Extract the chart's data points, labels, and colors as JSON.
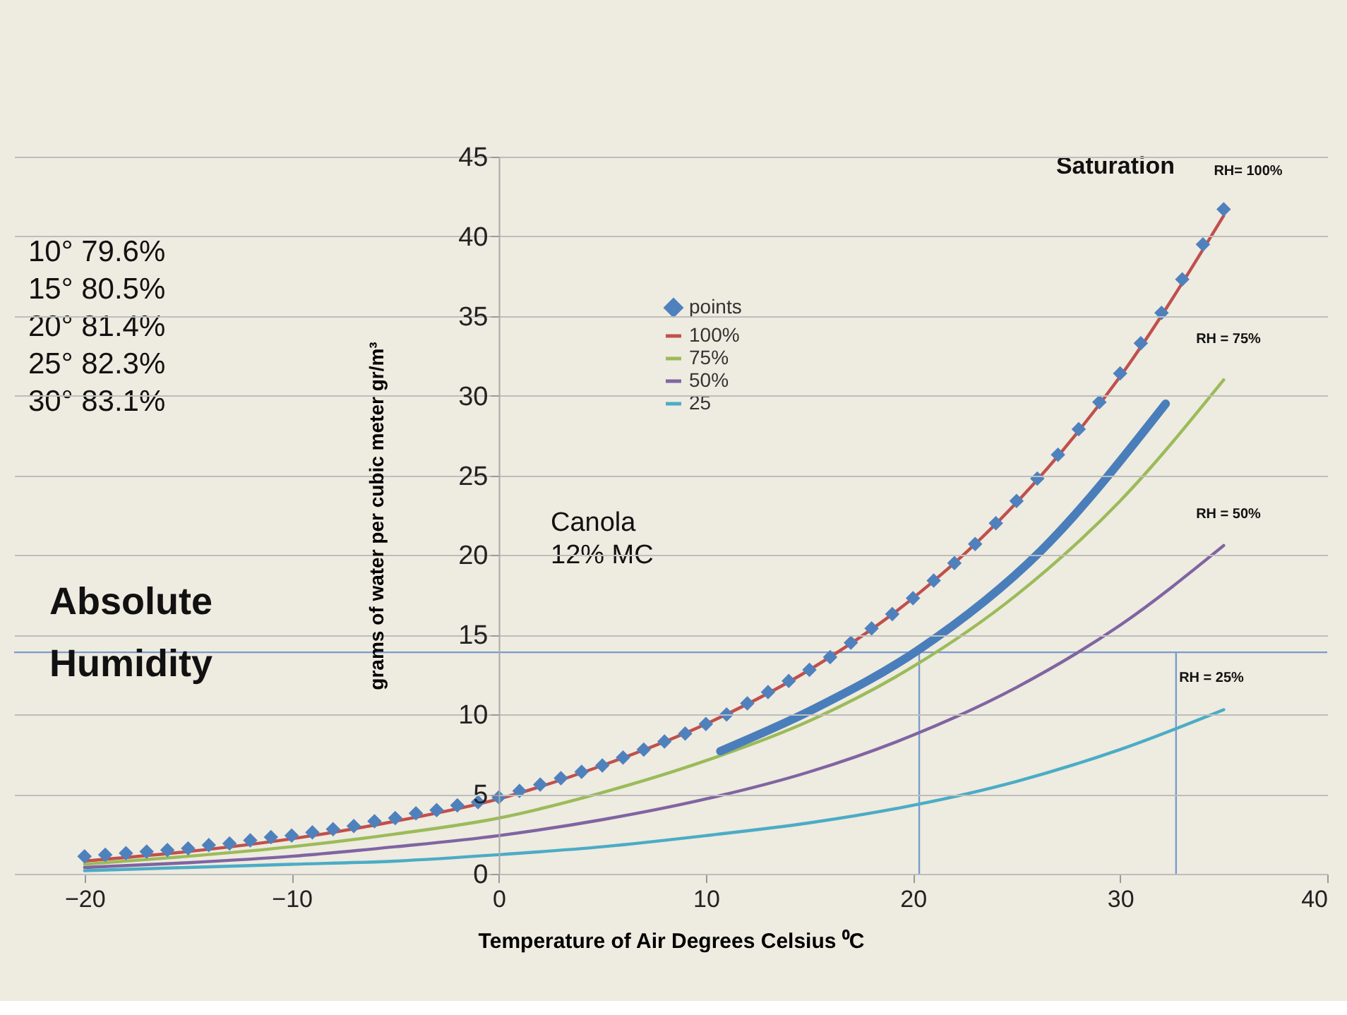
{
  "chart_data": {
    "type": "line",
    "title": "Absolute Humidity",
    "xlabel": "Temperature of Air   Degrees Celsius  ⁰C",
    "ylabel": "grams of water per cubic meter  gr/m³",
    "xlim": [
      -23.4,
      40
    ],
    "xticks": [
      -20,
      -10,
      0,
      10,
      20,
      30,
      40
    ],
    "ylim": [
      0,
      45
    ],
    "yticks": [
      0,
      5,
      10,
      15,
      20,
      25,
      30,
      35,
      40,
      45
    ],
    "grid": "y",
    "legend": "top",
    "line_style": "solid",
    "series": [
      {
        "name": "points",
        "type": "scatter",
        "marker": "diamond",
        "color": "#4f81bd",
        "x": [
          -20,
          -19,
          -18,
          -17,
          -16,
          -15,
          -14,
          -13,
          -12,
          -11,
          -10,
          -9,
          -8,
          -7,
          -6,
          -5,
          -4,
          -3,
          -2,
          -1,
          0,
          1,
          2,
          3,
          4,
          5,
          6,
          7,
          8,
          9,
          10,
          11,
          12,
          13,
          14,
          15,
          16,
          17,
          18,
          19,
          20,
          21,
          22,
          23,
          24,
          25,
          26,
          27,
          28,
          29,
          30,
          31,
          32,
          33,
          34,
          35
        ],
        "values": [
          1.1,
          1.2,
          1.3,
          1.4,
          1.5,
          1.6,
          1.8,
          1.9,
          2.1,
          2.3,
          2.4,
          2.6,
          2.8,
          3.0,
          3.3,
          3.5,
          3.8,
          4.0,
          4.3,
          4.5,
          4.8,
          5.2,
          5.6,
          6.0,
          6.4,
          6.8,
          7.3,
          7.8,
          8.3,
          8.8,
          9.4,
          10.0,
          10.7,
          11.4,
          12.1,
          12.8,
          13.6,
          14.5,
          15.4,
          16.3,
          17.3,
          18.4,
          19.5,
          20.7,
          22.0,
          23.4,
          24.8,
          26.3,
          27.9,
          29.6,
          31.4,
          33.3,
          35.2,
          37.3,
          39.5,
          41.7
        ]
      },
      {
        "name": "100%",
        "color": "#c0504d",
        "x": [
          -20,
          -15,
          -10,
          -5,
          0,
          5,
          10,
          15,
          20,
          25,
          30,
          35
        ],
        "values": [
          0.8,
          1.4,
          2.2,
          3.3,
          4.7,
          6.8,
          9.4,
          12.8,
          17.3,
          23.3,
          31.2,
          41.3
        ]
      },
      {
        "name": "75%",
        "color": "#9bbb59",
        "x": [
          -20,
          -15,
          -10,
          -5,
          0,
          5,
          10,
          15,
          20,
          25,
          30,
          35
        ],
        "values": [
          0.6,
          1.1,
          1.7,
          2.5,
          3.5,
          5.1,
          7.1,
          9.6,
          13.0,
          17.5,
          23.4,
          31.0
        ]
      },
      {
        "name": "50%",
        "color": "#8064a2",
        "x": [
          -20,
          -15,
          -10,
          -5,
          0,
          5,
          10,
          15,
          20,
          25,
          30,
          35
        ],
        "values": [
          0.4,
          0.7,
          1.1,
          1.7,
          2.4,
          3.4,
          4.7,
          6.4,
          8.7,
          11.7,
          15.6,
          20.6
        ]
      },
      {
        "name": "25",
        "color": "#4bacc6",
        "x": [
          -20,
          -15,
          -10,
          -5,
          0,
          5,
          10,
          15,
          20,
          25,
          30,
          35
        ],
        "values": [
          0.2,
          0.4,
          0.6,
          0.8,
          1.2,
          1.7,
          2.4,
          3.2,
          4.3,
          5.8,
          7.8,
          10.3
        ]
      },
      {
        "color": "#4a7ebb",
        "x": [
          10.7,
          15.3,
          20.2,
          26.2,
          32.2
        ],
        "values": [
          7.7,
          10.4,
          14.0,
          20.3,
          29.5
        ]
      }
    ],
    "ref_lines": [
      {
        "axis": "y",
        "value": 13.9,
        "color": "#7a9ccc"
      },
      {
        "axis": "x",
        "value": 20.3,
        "color": "#7a9ccc"
      },
      {
        "axis": "x",
        "value": 32.7,
        "color": "#7a9ccc"
      }
    ],
    "annotations": [
      "Saturation",
      "RH= 100%",
      "RH = 75%",
      "RH = 50%",
      "RH = 25%",
      "Canola\n12% MC",
      "10°  79.6%",
      "15°  80.5%",
      "20°  81.4%",
      "25°  82.3%",
      "30°  83.1%"
    ]
  }
}
